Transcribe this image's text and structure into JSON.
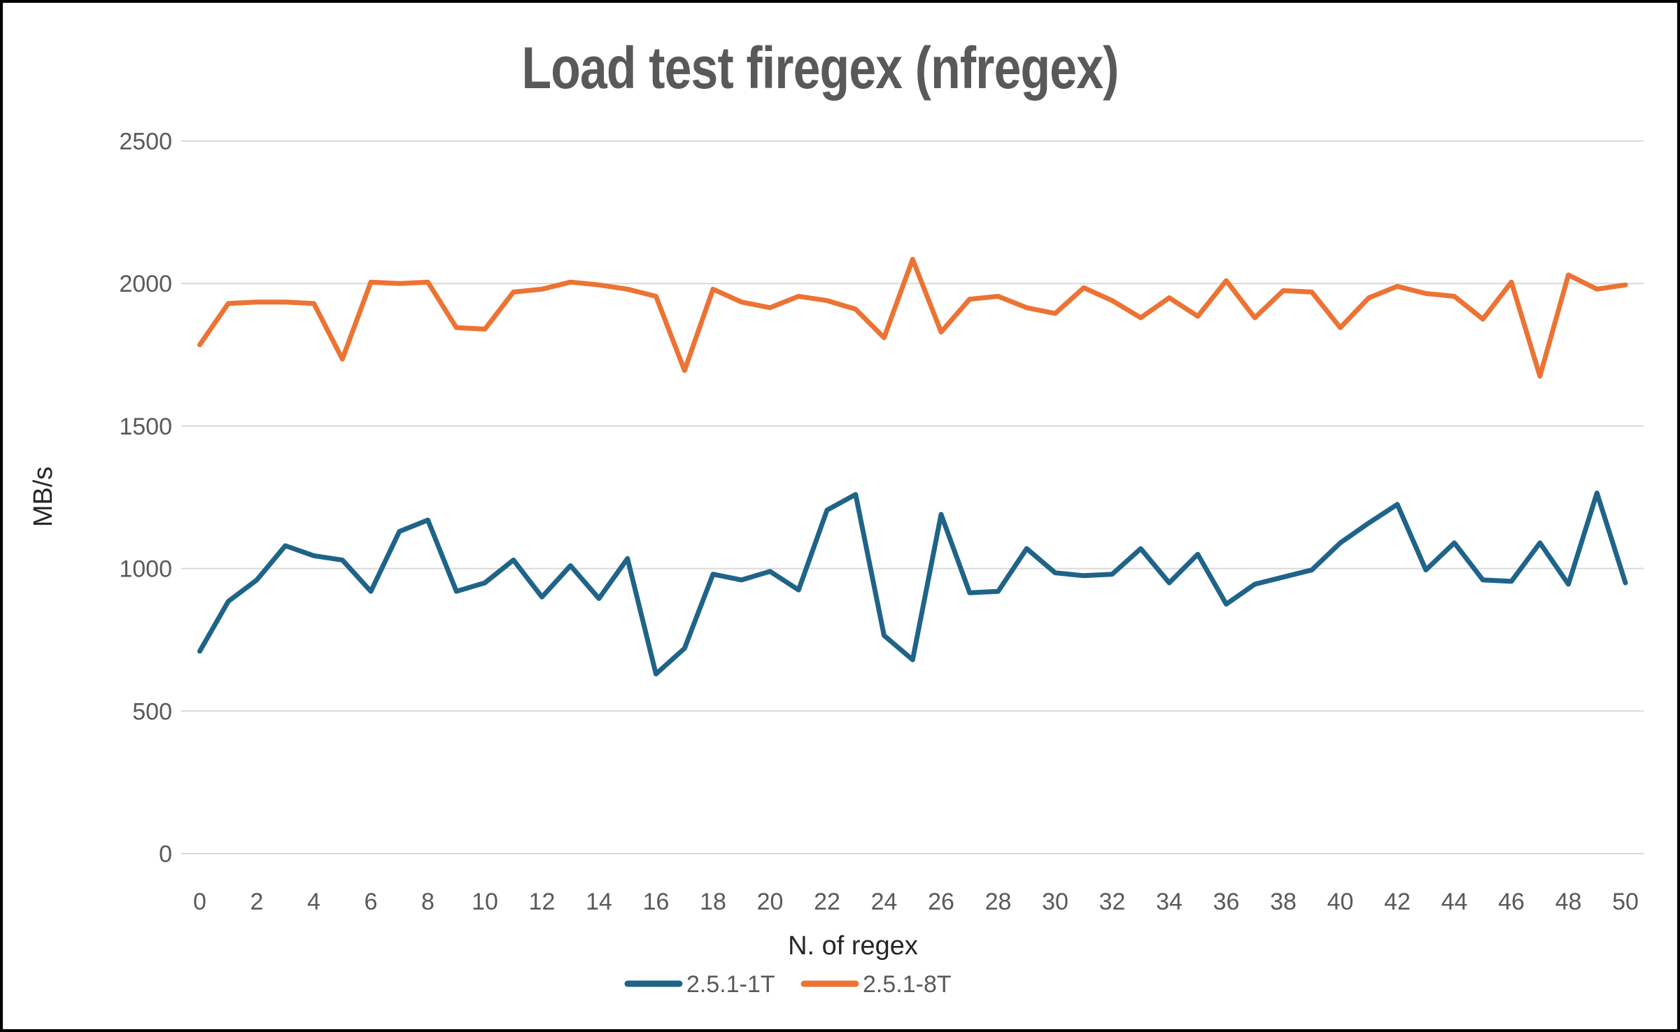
{
  "page": {
    "background_color": "#FFFFFF",
    "border_color": "#000000",
    "gridline_color": "#D9D9D9",
    "tick_text_color": "#595959",
    "title_text_color": "#595959",
    "axis_title_text_color": "#262626"
  },
  "chart_data": {
    "type": "line",
    "title": "Load test firegex (nfregex)",
    "xlabel": "N. of regex",
    "ylabel": "MB/s",
    "x_range": [
      0,
      50
    ],
    "x_tick_step": 2,
    "ylim": [
      0,
      2500
    ],
    "y_ticks": [
      0,
      500,
      1000,
      1500,
      2000,
      2500
    ],
    "grid": true,
    "legend_position": "bottom",
    "x": [
      0,
      1,
      2,
      3,
      4,
      5,
      6,
      7,
      8,
      9,
      10,
      11,
      12,
      13,
      14,
      15,
      16,
      17,
      18,
      19,
      20,
      21,
      22,
      23,
      24,
      25,
      26,
      27,
      28,
      29,
      30,
      31,
      32,
      33,
      34,
      35,
      36,
      37,
      38,
      39,
      40,
      41,
      42,
      43,
      44,
      45,
      46,
      47,
      48,
      49,
      50
    ],
    "series": [
      {
        "name": "2.5.1-1T",
        "color": "#1F6488",
        "values": [
          710,
          885,
          960,
          1080,
          1045,
          1030,
          920,
          1130,
          1170,
          920,
          950,
          1030,
          900,
          1010,
          895,
          1035,
          630,
          720,
          980,
          960,
          990,
          925,
          1205,
          1260,
          765,
          680,
          1190,
          915,
          920,
          1070,
          985,
          975,
          980,
          1070,
          950,
          1050,
          875,
          945,
          970,
          995,
          1090,
          1160,
          1225,
          995,
          1090,
          960,
          955,
          1090,
          945,
          1265,
          950
        ]
      },
      {
        "name": "2.5.1-8T",
        "color": "#EC7333",
        "values": [
          1785,
          1930,
          1935,
          1935,
          1930,
          1735,
          2005,
          2000,
          2005,
          1845,
          1840,
          1970,
          1980,
          2005,
          1995,
          1980,
          1955,
          1695,
          1980,
          1935,
          1915,
          1955,
          1940,
          1910,
          1810,
          2085,
          1830,
          1945,
          1955,
          1915,
          1895,
          1985,
          1940,
          1880,
          1950,
          1885,
          2010,
          1880,
          1975,
          1970,
          1845,
          1950,
          1990,
          1965,
          1955,
          1875,
          2005,
          1675,
          2030,
          1980,
          1995
        ]
      }
    ]
  }
}
